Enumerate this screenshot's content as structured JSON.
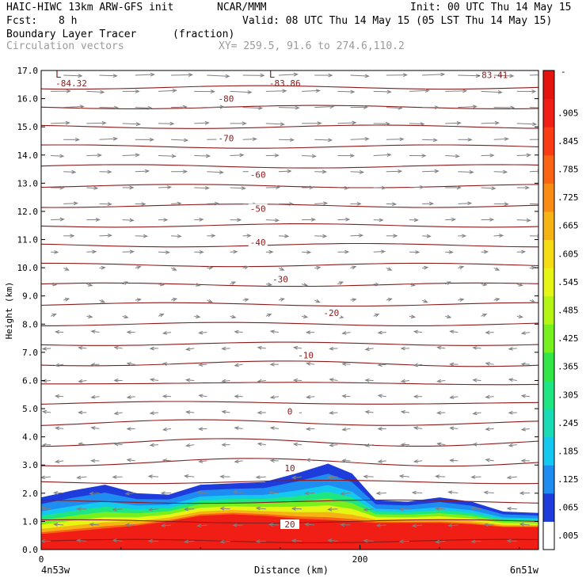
{
  "header": {
    "model": "HAIC-HIWC 13km ARW-GFS init",
    "org": "NCAR/MMM",
    "init": "Init: 00 UTC Thu 14 May 15",
    "fcst_label": "Fcst:",
    "fcst_value": "8 h",
    "valid": "Valid: 08 UTC Thu 14 May 15 (05 LST Thu 14 May 15)",
    "field": "Boundary Layer Tracer",
    "field_units": "(fraction)",
    "vectors": "Circulation vectors",
    "xy": "XY= 259.5, 91.6 to 274.6,110.2"
  },
  "colors": {
    "contour": "#8b1a1a",
    "vector": "#808080",
    "frame": "#000000"
  },
  "chart_data": {
    "type": "heatmap",
    "xlabel": "Distance (km)",
    "ylabel": "Height (km)",
    "x_tick_labels": [
      "0",
      "200"
    ],
    "x_ticks": [
      0,
      200
    ],
    "x_start_label": "4n53w",
    "x_end_label": "6n51w",
    "xlim": [
      0,
      312
    ],
    "ylim": [
      0,
      17
    ],
    "y_ticks": [
      "0.0",
      "1.0",
      "2.0",
      "3.0",
      "4.0",
      "5.0",
      "6.0",
      "7.0",
      "8.0",
      "9.0",
      "10.0",
      "11.0",
      "12.0",
      "13.0",
      "14.0",
      "15.0",
      "16.0",
      "17.0"
    ],
    "colorbar": {
      "labels": [
        ".005",
        ".065",
        ".125",
        ".185",
        ".245",
        ".305",
        ".365",
        ".425",
        ".485",
        ".545",
        ".605",
        ".665",
        ".725",
        ".785",
        ".845",
        ".905"
      ],
      "top_label": "-",
      "colors": [
        "#ffffff",
        "#1e3cdc",
        "#1e8cf0",
        "#14c8f0",
        "#19dcb4",
        "#1ee682",
        "#32e646",
        "#78f01e",
        "#b4f514",
        "#e6f514",
        "#f5dc14",
        "#f5b414",
        "#fa8c14",
        "#fa6414",
        "#fa3c14",
        "#f01e14",
        "#e6140f"
      ]
    },
    "contour_labels": [
      {
        "text": "-80",
        "x": 116,
        "y": 16.0
      },
      {
        "text": "-70",
        "x": 116,
        "y": 14.6
      },
      {
        "text": "-60",
        "x": 136,
        "y": 13.3
      },
      {
        "text": "-50",
        "x": 136,
        "y": 12.1
      },
      {
        "text": "-40",
        "x": 136,
        "y": 10.9
      },
      {
        "text": "-30",
        "x": 150,
        "y": 9.6
      },
      {
        "text": "-20",
        "x": 182,
        "y": 8.4
      },
      {
        "text": "-10",
        "x": 166,
        "y": 6.9
      },
      {
        "text": "0",
        "x": 156,
        "y": 4.9
      },
      {
        "text": "10",
        "x": 156,
        "y": 2.9
      },
      {
        "text": "20",
        "x": 156,
        "y": 0.9
      }
    ],
    "extrema": [
      {
        "symbol": "L",
        "value": "-84.32",
        "x": 12,
        "y": 16.8
      },
      {
        "symbol": "L",
        "value": "-83.86",
        "x": 146,
        "y": 16.8
      },
      {
        "value": "-83.41",
        "x": 276,
        "y": 17.1
      }
    ],
    "tracer_band": [
      {
        "x": 0,
        "top": 1.85,
        "red": 0.55
      },
      {
        "x": 20,
        "top": 2.1,
        "red": 0.65
      },
      {
        "x": 40,
        "top": 2.3,
        "red": 0.75
      },
      {
        "x": 60,
        "top": 2.0,
        "red": 0.85
      },
      {
        "x": 80,
        "top": 1.95,
        "red": 1.0
      },
      {
        "x": 100,
        "top": 2.3,
        "red": 1.2
      },
      {
        "x": 120,
        "top": 2.35,
        "red": 1.25
      },
      {
        "x": 140,
        "top": 2.4,
        "red": 1.2
      },
      {
        "x": 160,
        "top": 2.7,
        "red": 1.1
      },
      {
        "x": 180,
        "top": 3.05,
        "red": 1.05
      },
      {
        "x": 195,
        "top": 2.7,
        "red": 1.0
      },
      {
        "x": 210,
        "top": 1.75,
        "red": 0.95
      },
      {
        "x": 230,
        "top": 1.7,
        "red": 0.95
      },
      {
        "x": 250,
        "top": 1.85,
        "red": 0.95
      },
      {
        "x": 270,
        "top": 1.7,
        "red": 0.9
      },
      {
        "x": 290,
        "top": 1.35,
        "red": 0.8
      },
      {
        "x": 312,
        "top": 1.3,
        "red": 0.8
      }
    ]
  }
}
